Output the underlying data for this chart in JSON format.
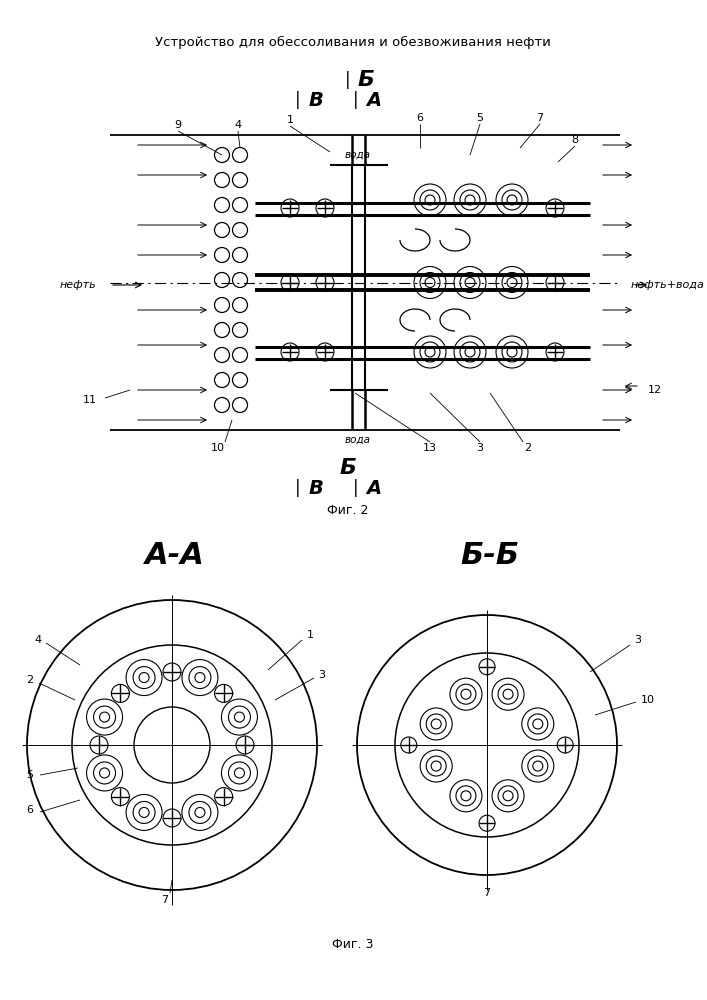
{
  "title": "Устройство для обессоливания и обезвоживания нефти",
  "fig2_caption": "Фиг. 2",
  "fig3_caption": "Фиг. 3",
  "bg_color": "#ffffff",
  "line_color": "#000000"
}
